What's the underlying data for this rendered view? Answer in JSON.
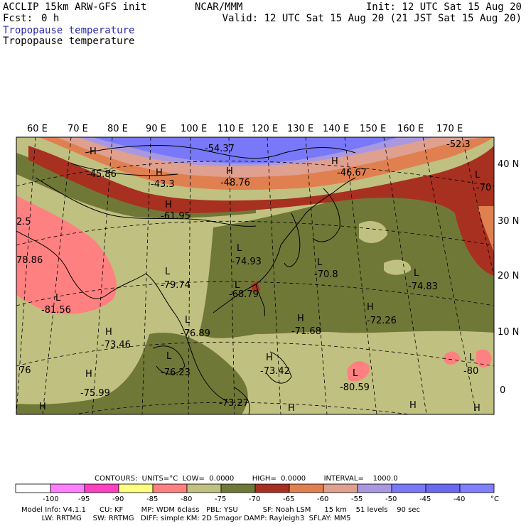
{
  "header": {
    "model": "ACCLIP 15km ARW-GFS init",
    "org": "NCAR/MMM",
    "init": "Init: 12 UTC Sat 15 Aug 20",
    "fcst_label": "Fcst:",
    "fcst_value": "0 h",
    "valid": "Valid: 12 UTC Sat 15 Aug 20 (21 JST Sat 15 Aug 20)",
    "field_title_1": "Tropopause temperature",
    "field_title_2": "Tropopause temperature"
  },
  "colors": {
    "title_blue": "#2a2aa8",
    "c_lt_neg100": "#ffffff",
    "c_m100_m95": "#ff80ff",
    "c_m95_m90": "#ff40c0",
    "c_m90_m85": "#ffff80",
    "c_m85_m80": "#ff8080",
    "c_m80_m75": "#c0c080",
    "c_m75_m70": "#707838",
    "c_m70_m65": "#a83020",
    "c_m65_m60": "#e08050",
    "c_m60_m55": "#e0a090",
    "c_m55_m50": "#a898e0",
    "c_m50_m45": "#7878f8",
    "c_m45_m40": "#6868f0",
    "c_gt_m40": "#8080ff"
  },
  "map": {
    "lon_labels": [
      "60 E",
      "70 E",
      "80 E",
      "90 E",
      "100 E",
      "110 E",
      "120 E",
      "130 E",
      "140 E",
      "150 E",
      "160 E",
      "170 E"
    ],
    "lat_labels": [
      "40 N",
      "30 N",
      "20 N",
      "10 N",
      "0"
    ],
    "centers": [
      {
        "type": "",
        "value": "-54.37"
      },
      {
        "type": "",
        "value": "-52.3"
      },
      {
        "type": "H",
        "value": "-45.86"
      },
      {
        "type": "H",
        "value": "-43.3"
      },
      {
        "type": "H",
        "value": "-48.76"
      },
      {
        "type": "H",
        "value": "-46.67"
      },
      {
        "type": "L",
        "value": "-70"
      },
      {
        "type": "H",
        "value": "-61.95"
      },
      {
        "type": "",
        "value": "2.5"
      },
      {
        "type": "",
        "value": "78.86"
      },
      {
        "type": "L",
        "value": "-74.93"
      },
      {
        "type": "L",
        "value": "-70.8"
      },
      {
        "type": "L",
        "value": "-74.83"
      },
      {
        "type": "L",
        "value": "-79.74"
      },
      {
        "type": "L",
        "value": "-68.79"
      },
      {
        "type": "L",
        "value": "-81.56"
      },
      {
        "type": "H",
        "value": "-71.68"
      },
      {
        "type": "H",
        "value": "-72.26"
      },
      {
        "type": "L",
        "value": "-76.89"
      },
      {
        "type": "H",
        "value": "-73.46"
      },
      {
        "type": "L",
        "value": "-76.23"
      },
      {
        "type": "H",
        "value": "-73.42"
      },
      {
        "type": "L",
        "value": "-80.59"
      },
      {
        "type": "L",
        "value": "-80"
      },
      {
        "type": "",
        "value": "76"
      },
      {
        "type": "H",
        "value": "-75.99"
      },
      {
        "type": "",
        "value": "-73.27"
      },
      {
        "type": "H",
        "value": ""
      },
      {
        "type": "H",
        "value": ""
      },
      {
        "type": "H",
        "value": ""
      },
      {
        "type": "H",
        "value": ""
      }
    ]
  },
  "contours": {
    "line": "CONTOURS:  UNITS=°C  LOW=  0.0000        HIGH=  0.0000        INTERVAL=    1000.0",
    "ticks": [
      "-100",
      "-95",
      "-90",
      "-85",
      "-80",
      "-75",
      "-70",
      "-65",
      "-60",
      "-55",
      "-50",
      "-45",
      "-40"
    ],
    "unit": "°C"
  },
  "model_info": {
    "line1": "Model Info: V4.1.1      CU: KF        MP: WDM 6class   PBL: YSU           SF: Noah LSM      15 km    51 levels    90 sec",
    "line2": "         LW: RRTMG     SW: RRTMG   DIFF: simple KM: 2D Smagor DAMP: Rayleigh3  SFLAY: MM5"
  }
}
